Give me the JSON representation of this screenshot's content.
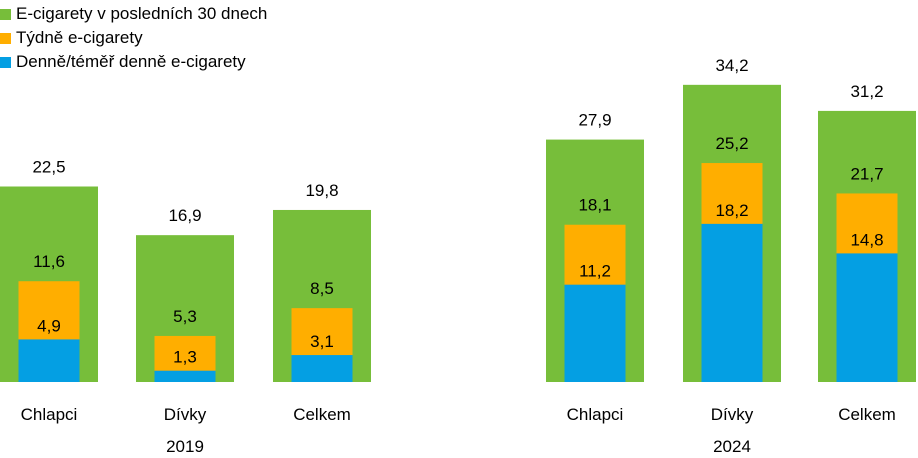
{
  "colors": {
    "thirty_days": "#77BE3A",
    "weekly": "#FFAE00",
    "daily": "#049FE3"
  },
  "chart_data": {
    "type": "bar",
    "legend": [
      {
        "key": "thirty_days",
        "label": "E-cigarety v posledních 30 dnech"
      },
      {
        "key": "weekly",
        "label": "Týdně e-cigarety"
      },
      {
        "key": "daily",
        "label": "Denně/téměř denně e-cigarety"
      }
    ],
    "legend_position": "top-left",
    "grid": false,
    "groups": [
      {
        "year": "2019",
        "categories": [
          {
            "label": "Chlapci",
            "thirty_days": 22.5,
            "weekly": 11.6,
            "daily": 4.9,
            "labels": {
              "thirty_days": "22,5",
              "weekly": "11,6",
              "daily": "4,9"
            }
          },
          {
            "label": "Dívky",
            "thirty_days": 16.9,
            "weekly": 5.3,
            "daily": 1.3,
            "labels": {
              "thirty_days": "16,9",
              "weekly": "5,3",
              "daily": "1,3"
            }
          },
          {
            "label": "Celkem",
            "thirty_days": 19.8,
            "weekly": 8.5,
            "daily": 3.1,
            "labels": {
              "thirty_days": "19,8",
              "weekly": "8,5",
              "daily": "3,1"
            }
          }
        ]
      },
      {
        "year": "2024",
        "categories": [
          {
            "label": "Chlapci",
            "thirty_days": 27.9,
            "weekly": 18.1,
            "daily": 11.2,
            "labels": {
              "thirty_days": "27,9",
              "weekly": "18,1",
              "daily": "11,2"
            }
          },
          {
            "label": "Dívky",
            "thirty_days": 34.2,
            "weekly": 25.2,
            "daily": 18.2,
            "labels": {
              "thirty_days": "34,2",
              "weekly": "25,2",
              "daily": "18,2"
            }
          },
          {
            "label": "Celkem",
            "thirty_days": 31.2,
            "weekly": 21.7,
            "daily": 14.8,
            "labels": {
              "thirty_days": "31,2",
              "weekly": "21,7",
              "daily": "14,8"
            }
          }
        ]
      }
    ]
  }
}
